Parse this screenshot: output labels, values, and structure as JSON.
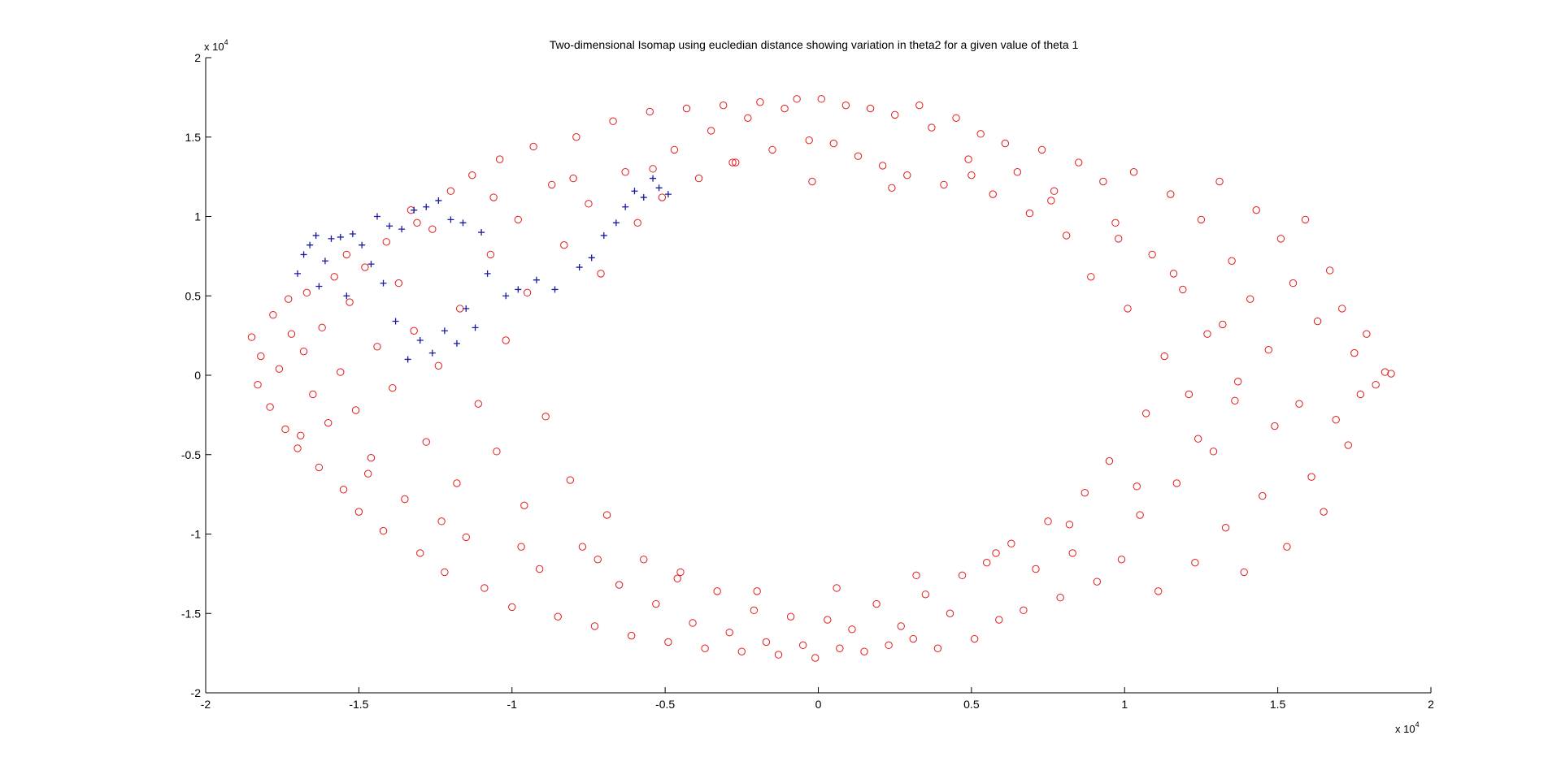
{
  "chart_data": {
    "type": "scatter",
    "title": "Two-dimensional Isomap using eucledian distance showing variation in theta2 for a given value of theta 1",
    "xlabel": "",
    "ylabel": "",
    "xlim": [
      -20000,
      20000
    ],
    "ylim": [
      -20000,
      20000
    ],
    "x_ticks": [
      -20000,
      -15000,
      -10000,
      -5000,
      0,
      5000,
      10000,
      15000,
      20000
    ],
    "y_ticks": [
      -20000,
      -15000,
      -10000,
      -5000,
      0,
      5000,
      10000,
      15000,
      20000
    ],
    "x_tick_labels": [
      "-2",
      "-1.5",
      "-1",
      "-0.5",
      "0",
      "0.5",
      "1",
      "1.5",
      "2"
    ],
    "y_tick_labels": [
      "-2",
      "-1.5",
      "-1",
      "-0.5",
      "0",
      "0.5",
      "1",
      "1.5",
      "2"
    ],
    "x_exponent": {
      "base": "x 10",
      "power": "4"
    },
    "y_exponent": {
      "base": "x 10",
      "power": "4"
    },
    "grid": false,
    "legend": "none",
    "series": [
      {
        "marker": "circle",
        "color": "#e41a1c",
        "description_shape": "elliptical ring",
        "points": [
          [
            -18500,
            2400
          ],
          [
            -18300,
            -600
          ],
          [
            -18200,
            1200
          ],
          [
            -17900,
            -2000
          ],
          [
            -17800,
            3800
          ],
          [
            -17600,
            400
          ],
          [
            -17400,
            -3400
          ],
          [
            -17200,
            2600
          ],
          [
            -17000,
            -4600
          ],
          [
            -16800,
            1500
          ],
          [
            -16700,
            5200
          ],
          [
            -16500,
            -1200
          ],
          [
            -16300,
            -5800
          ],
          [
            -16200,
            3000
          ],
          [
            -16000,
            -3000
          ],
          [
            -15800,
            6200
          ],
          [
            -15600,
            200
          ],
          [
            -15500,
            -7200
          ],
          [
            -15300,
            4600
          ],
          [
            -15100,
            -2200
          ],
          [
            -15000,
            -8600
          ],
          [
            -14800,
            6800
          ],
          [
            -14600,
            -5200
          ],
          [
            -14400,
            1800
          ],
          [
            -14200,
            -9800
          ],
          [
            -14100,
            8400
          ],
          [
            -13900,
            -800
          ],
          [
            -13700,
            5800
          ],
          [
            -13500,
            -7800
          ],
          [
            -13300,
            10400
          ],
          [
            -13200,
            2800
          ],
          [
            -13000,
            -11200
          ],
          [
            -12800,
            -4200
          ],
          [
            -12600,
            9200
          ],
          [
            -12400,
            600
          ],
          [
            -12200,
            -12400
          ],
          [
            -12000,
            11600
          ],
          [
            -11800,
            -6800
          ],
          [
            -11700,
            4200
          ],
          [
            -11500,
            -10200
          ],
          [
            -11300,
            12600
          ],
          [
            -11100,
            -1800
          ],
          [
            -10900,
            -13400
          ],
          [
            -10700,
            7600
          ],
          [
            -10500,
            -4800
          ],
          [
            -10400,
            13600
          ],
          [
            -10200,
            2200
          ],
          [
            -10000,
            -14600
          ],
          [
            -9800,
            9800
          ],
          [
            -9600,
            -8200
          ],
          [
            -9500,
            5200
          ],
          [
            -9300,
            14400
          ],
          [
            -9100,
            -12200
          ],
          [
            -8900,
            -2600
          ],
          [
            -8700,
            12000
          ],
          [
            -8500,
            -15200
          ],
          [
            -8300,
            8200
          ],
          [
            -8100,
            -6600
          ],
          [
            -7900,
            15000
          ],
          [
            -7700,
            -10800
          ],
          [
            -7500,
            10800
          ],
          [
            -7300,
            -15800
          ],
          [
            -7100,
            6400
          ],
          [
            -6900,
            -8800
          ],
          [
            -6700,
            16000
          ],
          [
            -6500,
            -13200
          ],
          [
            -6300,
            12800
          ],
          [
            -6100,
            -16400
          ],
          [
            -5900,
            9600
          ],
          [
            -5700,
            -11600
          ],
          [
            -5500,
            16600
          ],
          [
            -5300,
            -14400
          ],
          [
            -5100,
            11200
          ],
          [
            -4900,
            -16800
          ],
          [
            -4700,
            14200
          ],
          [
            -4500,
            -12400
          ],
          [
            -4300,
            16800
          ],
          [
            -4100,
            -15600
          ],
          [
            -3900,
            12400
          ],
          [
            -3700,
            -17200
          ],
          [
            -3500,
            15400
          ],
          [
            -3300,
            -13600
          ],
          [
            -3100,
            17000
          ],
          [
            -2900,
            -16200
          ],
          [
            -2700,
            13400
          ],
          [
            -2500,
            -17400
          ],
          [
            -2300,
            16200
          ],
          [
            -2100,
            -14800
          ],
          [
            -1900,
            17200
          ],
          [
            -1700,
            -16800
          ],
          [
            -1500,
            14200
          ],
          [
            -1300,
            -17600
          ],
          [
            -1100,
            16800
          ],
          [
            -900,
            -15200
          ],
          [
            -700,
            17400
          ],
          [
            -500,
            -17000
          ],
          [
            -300,
            14800
          ],
          [
            -100,
            -17800
          ],
          [
            100,
            17400
          ],
          [
            300,
            -15400
          ],
          [
            500,
            14600
          ],
          [
            700,
            -17200
          ],
          [
            900,
            17000
          ],
          [
            1100,
            -16000
          ],
          [
            1300,
            13800
          ],
          [
            1500,
            -17400
          ],
          [
            1700,
            16800
          ],
          [
            1900,
            -14400
          ],
          [
            2100,
            13200
          ],
          [
            2300,
            -17000
          ],
          [
            2500,
            16400
          ],
          [
            2700,
            -15800
          ],
          [
            2900,
            12600
          ],
          [
            3100,
            -16600
          ],
          [
            3300,
            17000
          ],
          [
            3500,
            -13800
          ],
          [
            3700,
            15600
          ],
          [
            3900,
            -17200
          ],
          [
            4100,
            12000
          ],
          [
            4300,
            -15000
          ],
          [
            4500,
            16200
          ],
          [
            4700,
            -12600
          ],
          [
            4900,
            13600
          ],
          [
            5100,
            -16600
          ],
          [
            5300,
            15200
          ],
          [
            5500,
            -11800
          ],
          [
            5700,
            11400
          ],
          [
            5900,
            -15400
          ],
          [
            6100,
            14600
          ],
          [
            6300,
            -10600
          ],
          [
            6500,
            12800
          ],
          [
            6700,
            -14800
          ],
          [
            6900,
            10200
          ],
          [
            7100,
            -12200
          ],
          [
            7300,
            14200
          ],
          [
            7500,
            -9200
          ],
          [
            7700,
            11600
          ],
          [
            7900,
            -14000
          ],
          [
            8100,
            8800
          ],
          [
            8300,
            -11200
          ],
          [
            8500,
            13400
          ],
          [
            8700,
            -7400
          ],
          [
            8900,
            6200
          ],
          [
            9100,
            -13000
          ],
          [
            9300,
            12200
          ],
          [
            9500,
            -5400
          ],
          [
            9700,
            9600
          ],
          [
            9900,
            -11600
          ],
          [
            10100,
            4200
          ],
          [
            10300,
            12800
          ],
          [
            10500,
            -8800
          ],
          [
            10700,
            -2400
          ],
          [
            10900,
            7600
          ],
          [
            11100,
            -13600
          ],
          [
            11300,
            1200
          ],
          [
            11500,
            11400
          ],
          [
            11700,
            -6800
          ],
          [
            11900,
            5400
          ],
          [
            12100,
            -1200
          ],
          [
            12300,
            -11800
          ],
          [
            12500,
            9800
          ],
          [
            12700,
            2600
          ],
          [
            12900,
            -4800
          ],
          [
            13100,
            12200
          ],
          [
            13300,
            -9600
          ],
          [
            13500,
            7200
          ],
          [
            13700,
            -400
          ],
          [
            13900,
            -12400
          ],
          [
            14100,
            4800
          ],
          [
            14300,
            10400
          ],
          [
            14500,
            -7600
          ],
          [
            14700,
            1600
          ],
          [
            14900,
            -3200
          ],
          [
            15100,
            8600
          ],
          [
            15300,
            -10800
          ],
          [
            15500,
            5800
          ],
          [
            15700,
            -1800
          ],
          [
            15900,
            9800
          ],
          [
            16100,
            -6400
          ],
          [
            16300,
            3400
          ],
          [
            16500,
            -8600
          ],
          [
            16700,
            6600
          ],
          [
            16900,
            -2800
          ],
          [
            17100,
            4200
          ],
          [
            17300,
            -4400
          ],
          [
            17500,
            1400
          ],
          [
            17700,
            -1200
          ],
          [
            17900,
            2600
          ],
          [
            18200,
            -600
          ],
          [
            18500,
            200
          ],
          [
            18700,
            100
          ],
          [
            -16900,
            -3800
          ],
          [
            -14700,
            -6200
          ],
          [
            -12300,
            -9200
          ],
          [
            -9700,
            -10800
          ],
          [
            -7200,
            -11600
          ],
          [
            -4600,
            -12800
          ],
          [
            -2000,
            -13600
          ],
          [
            600,
            -13400
          ],
          [
            3200,
            -12600
          ],
          [
            5800,
            -11200
          ],
          [
            8200,
            -9400
          ],
          [
            10400,
            -7000
          ],
          [
            12400,
            -4000
          ],
          [
            13600,
            -1600
          ],
          [
            -17300,
            4800
          ],
          [
            -15400,
            7600
          ],
          [
            -13100,
            9600
          ],
          [
            -10600,
            11200
          ],
          [
            -8000,
            12400
          ],
          [
            -5400,
            13000
          ],
          [
            -2800,
            13400
          ],
          [
            -200,
            12200
          ],
          [
            2400,
            11800
          ],
          [
            5000,
            12600
          ],
          [
            7600,
            11000
          ],
          [
            9800,
            8600
          ],
          [
            11600,
            6400
          ],
          [
            13200,
            3200
          ]
        ]
      },
      {
        "marker": "plus",
        "color": "#1a1aa0",
        "points": [
          [
            -17000,
            6400
          ],
          [
            -16800,
            7600
          ],
          [
            -16600,
            8200
          ],
          [
            -16400,
            8800
          ],
          [
            -16300,
            5600
          ],
          [
            -16100,
            7200
          ],
          [
            -15900,
            8600
          ],
          [
            -15600,
            8700
          ],
          [
            -15400,
            5000
          ],
          [
            -15200,
            8900
          ],
          [
            -14900,
            8200
          ],
          [
            -14600,
            7000
          ],
          [
            -14400,
            10000
          ],
          [
            -14200,
            5800
          ],
          [
            -14000,
            9400
          ],
          [
            -13800,
            3400
          ],
          [
            -13600,
            9200
          ],
          [
            -13400,
            1000
          ],
          [
            -13200,
            10400
          ],
          [
            -13000,
            2200
          ],
          [
            -12800,
            10600
          ],
          [
            -12600,
            1400
          ],
          [
            -12400,
            11000
          ],
          [
            -12200,
            2800
          ],
          [
            -12000,
            9800
          ],
          [
            -11800,
            2000
          ],
          [
            -11600,
            9600
          ],
          [
            -11500,
            4200
          ],
          [
            -11200,
            3000
          ],
          [
            -11000,
            9000
          ],
          [
            -10800,
            6400
          ],
          [
            -10200,
            5000
          ],
          [
            -9800,
            5400
          ],
          [
            -9200,
            6000
          ],
          [
            -8600,
            5400
          ],
          [
            -7800,
            6800
          ],
          [
            -7400,
            7400
          ],
          [
            -7000,
            8800
          ],
          [
            -6600,
            9600
          ],
          [
            -6300,
            10600
          ],
          [
            -6000,
            11600
          ],
          [
            -5700,
            11200
          ],
          [
            -5400,
            12400
          ],
          [
            -5200,
            11800
          ],
          [
            -4900,
            11400
          ]
        ]
      }
    ]
  }
}
